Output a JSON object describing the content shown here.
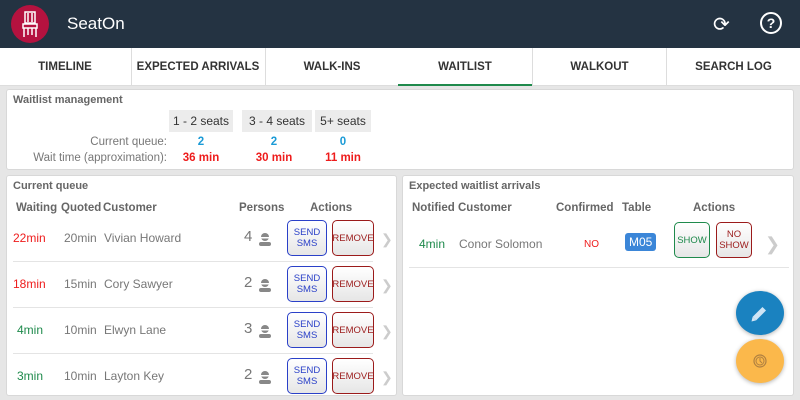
{
  "app": {
    "title": "SeatOn",
    "icons": [
      "chair-logo",
      "refresh-icon",
      "help-icon"
    ]
  },
  "tabs": [
    {
      "label": "TIMELINE"
    },
    {
      "label": "EXPECTED ARRIVALS"
    },
    {
      "label": "WALK-INS"
    },
    {
      "label": "WAITLIST",
      "active": true
    },
    {
      "label": "WALKOUT"
    },
    {
      "label": "SEARCH LOG"
    }
  ],
  "waitlist": {
    "title": "Waitlist management",
    "queue_label": "Current queue:",
    "wait_label": "Wait time (approximation):",
    "groups": [
      {
        "label": "1 - 2 seats",
        "queue": "2",
        "wait": "36 min"
      },
      {
        "label": "3 - 4 seats",
        "queue": "2",
        "wait": "30 min"
      },
      {
        "label": "5+ seats",
        "queue": "0",
        "wait": "11 min"
      }
    ]
  },
  "queue": {
    "title": "Current queue",
    "headers": {
      "waiting": "Waiting",
      "quoted": "Quoted",
      "customer": "Customer",
      "persons": "Persons",
      "actions": "Actions"
    },
    "sms_label1": "SEND",
    "sms_label2": "SMS",
    "remove_label": "REMOVE",
    "rows": [
      {
        "waiting": "22min",
        "quoted": "20min",
        "customer": "Vivian Howard",
        "persons": "4",
        "late": true
      },
      {
        "waiting": "18min",
        "quoted": "15min",
        "customer": "Cory Sawyer",
        "persons": "2",
        "late": true
      },
      {
        "waiting": "4min",
        "quoted": "10min",
        "customer": "Elwyn Lane",
        "persons": "3",
        "late": false
      },
      {
        "waiting": "3min",
        "quoted": "10min",
        "customer": "Layton Key",
        "persons": "2",
        "late": false
      }
    ]
  },
  "arrivals": {
    "title": "Expected waitlist arrivals",
    "headers": {
      "notified": "Notified",
      "customer": "Customer",
      "confirmed": "Confirmed",
      "table": "Table",
      "actions": "Actions"
    },
    "rows": [
      {
        "notified": "4min",
        "customer": "Conor Solomon",
        "confirmed": "NO",
        "table": "M05",
        "show": "SHOW",
        "noshow1": "NO",
        "noshow2": "SHOW"
      }
    ]
  },
  "colors": {
    "header": "#243342",
    "accent": "#1f8a4c",
    "late": "#ee1c1c",
    "ontime": "#1f8a4c",
    "queue": "#1a9ad6",
    "fab_edit": "#1a82c0",
    "fab_history": "#fbb84b"
  }
}
